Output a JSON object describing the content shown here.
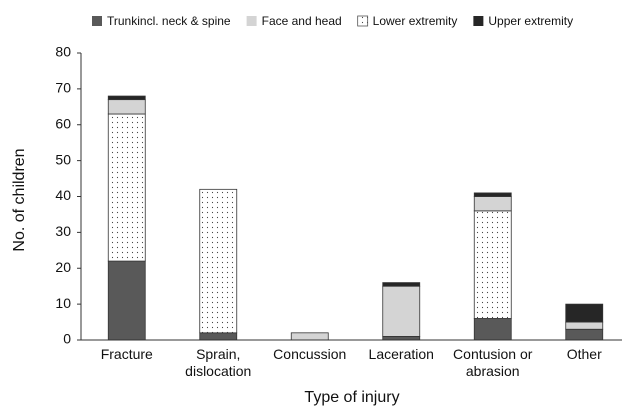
{
  "chart_data": {
    "type": "stacked_bar",
    "xlabel": "Type of injury",
    "ylabel": "No. of children",
    "categories": [
      "Fracture",
      "Sprain, dislocation",
      "Concussion",
      "Laceration",
      "Contusion or abrasion",
      "Other"
    ],
    "series": [
      {
        "name": "Trunkincl. neck & spine",
        "color": "#595959",
        "values": [
          22,
          2,
          0,
          1,
          6,
          3
        ]
      },
      {
        "name": "Face and head",
        "color": "#d4d4d4",
        "values": [
          4,
          0,
          2,
          14,
          4,
          2
        ]
      },
      {
        "name": "Lower extremity",
        "color": "#ffffff",
        "pattern": "dotted",
        "values": [
          41,
          40,
          0,
          0,
          30,
          0
        ]
      },
      {
        "name": "Upper extremity",
        "color": "#262626",
        "values": [
          1,
          0,
          0,
          1,
          1,
          5
        ]
      }
    ],
    "ylim": [
      0,
      80
    ],
    "yticks": [
      0,
      10,
      20,
      30,
      40,
      50,
      60,
      70,
      80
    ],
    "grid": false,
    "legend": "top"
  }
}
